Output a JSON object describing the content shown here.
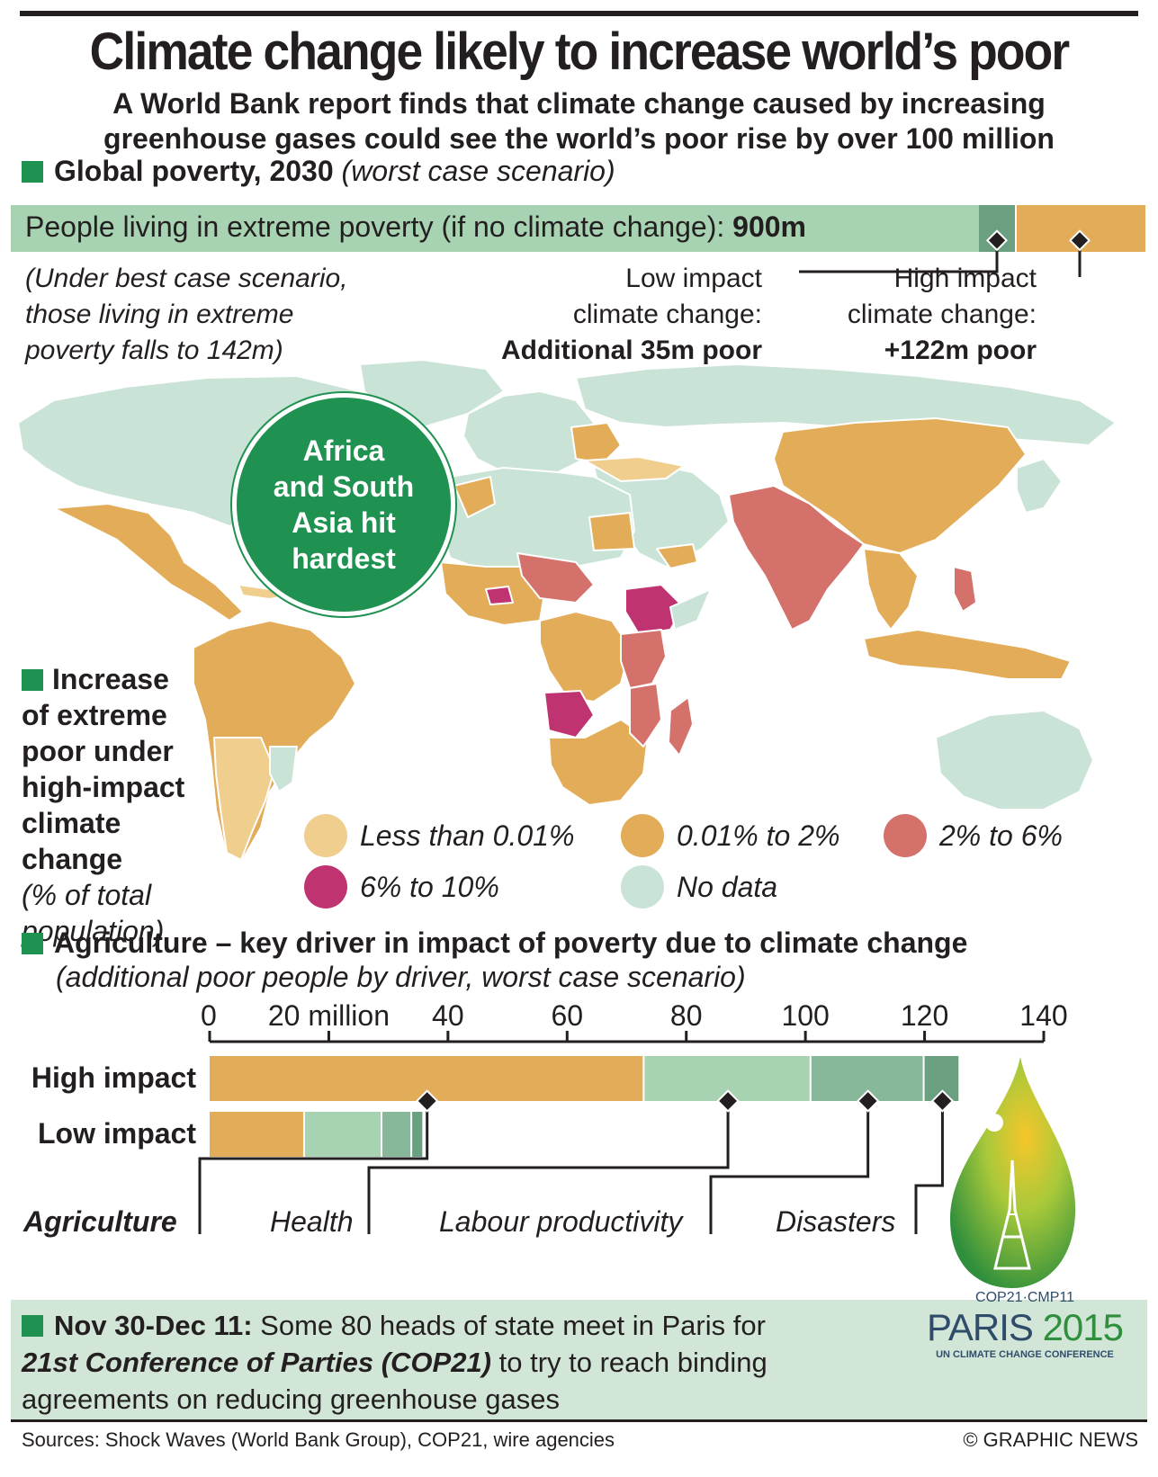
{
  "title": "Climate change likely to increase world’s poor",
  "subtitle_line1": "A World Bank report finds that climate change caused by increasing",
  "subtitle_line2": "greenhouse gases could see the world’s poor rise by over 100 million",
  "poverty_section": {
    "heading": "Global poverty, 2030",
    "heading_note": "(worst case scenario)",
    "bar_label": "People living in extreme poverty (if no climate change):",
    "bar_value": "900m",
    "best_case_l1": "(Under best case scenario,",
    "best_case_l2": "those living in extreme",
    "best_case_l3": "poverty falls to 142m)",
    "low_l1": "Low impact",
    "low_l2": "climate change:",
    "low_l3": "Additional 35m poor",
    "high_l1": "High impact",
    "high_l2": "climate change:",
    "high_l3": "+122m poor",
    "colors": {
      "base": "#a8d3b2",
      "low": "#6a9f80",
      "high": "#e2ac58"
    }
  },
  "map": {
    "callout_l1": "Africa",
    "callout_l2": "and South",
    "callout_l3": "Asia hit",
    "callout_l4": "hardest",
    "legend_title_l1": "Increase",
    "legend_title_l2": "of extreme",
    "legend_title_l3": "poor under",
    "legend_title_l4": "high-impact",
    "legend_title_l5": "climate",
    "legend_title_l6": "change",
    "legend_note_l1": "(% of total",
    "legend_note_l2": "population)",
    "legend": [
      {
        "label": "Less than 0.01%",
        "color": "#efce8e"
      },
      {
        "label": "0.01% to 2%",
        "color": "#e2ac58"
      },
      {
        "label": "2% to 6%",
        "color": "#d4716b"
      },
      {
        "label": "6% to 10%",
        "color": "#bf3370"
      },
      {
        "label": "No data",
        "color": "#c9e3d6"
      }
    ]
  },
  "agriculture_section": {
    "heading": "Agriculture – key driver in impact of poverty due to climate change",
    "subheading": "(additional poor people by driver, worst case scenario)"
  },
  "chart_data": {
    "type": "bar",
    "orientation": "horizontal",
    "stacked": true,
    "x_ticks": [
      "0",
      "20 million",
      "40",
      "60",
      "80",
      "100",
      "120",
      "140"
    ],
    "xlim": [
      0,
      140
    ],
    "categories": [
      "High impact",
      "Low impact"
    ],
    "series": [
      {
        "name": "Agriculture",
        "values": [
          73,
          16
        ],
        "color": "#e2ac58"
      },
      {
        "name": "Health",
        "values": [
          28,
          13
        ],
        "color": "#a8d3b2"
      },
      {
        "name": "Labour productivity",
        "values": [
          19,
          5
        ],
        "color": "#86b899"
      },
      {
        "name": "Disasters",
        "values": [
          6,
          2
        ],
        "color": "#6a9f80"
      }
    ]
  },
  "footer": {
    "dates": "Nov 30-Dec 11:",
    "text1": " Some 80 heads of state meet in Paris for",
    "event": "21st Conference of Parties (COP21)",
    "text2": " to try to reach binding",
    "text3": "agreements on reducing greenhouse gases",
    "sources": "Sources: Shock Waves (World Bank Group), COP21, wire agencies",
    "credit": "© GRAPHIC NEWS"
  },
  "logo": {
    "line1": "COP21·CMP11",
    "line2_a": "PARIS ",
    "line2_b": "2015",
    "line3": "UN CLIMATE CHANGE CONFERENCE"
  }
}
